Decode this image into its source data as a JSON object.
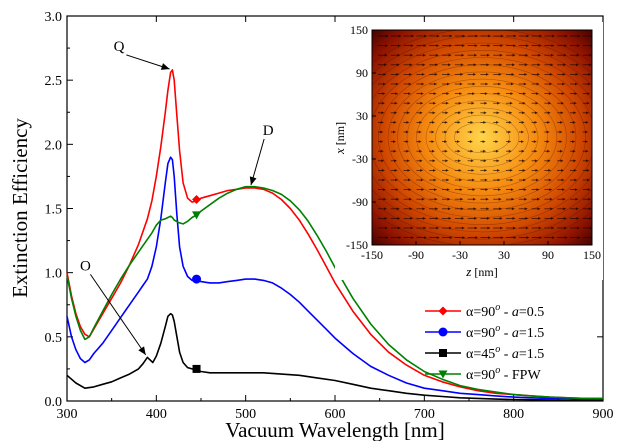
{
  "chart_data": [
    {
      "type": "line",
      "xlabel": "Vacuum Wavelength [nm]",
      "ylabel": "Extinction Efficiency",
      "xlim": [
        300,
        900
      ],
      "ylim": [
        0.0,
        3.0
      ],
      "xticks": [
        "300",
        "400",
        "500",
        "600",
        "700",
        "800",
        "900"
      ],
      "yticks": [
        "0.0",
        "0.5",
        "1.0",
        "1.5",
        "2.0",
        "2.5",
        "3.0"
      ],
      "grid": false,
      "legend_position": "bottom-right",
      "series": [
        {
          "name": "α=90o - a=0.5",
          "legend": {
            "pre": "α=90",
            "sup": "o",
            "mid": " - ",
            "var": "a",
            "post": "=0.5"
          },
          "color": "#ff0000",
          "marker": "diamond",
          "marker_point": [
            445,
            1.57
          ],
          "x": [
            300,
            305,
            310,
            315,
            320,
            325,
            330,
            340,
            350,
            360,
            370,
            380,
            390,
            395,
            400,
            405,
            410,
            413,
            416,
            418,
            420,
            423,
            426,
            430,
            435,
            440,
            445,
            450,
            460,
            470,
            480,
            490,
            500,
            510,
            520,
            530,
            540,
            550,
            560,
            570,
            580,
            590,
            600,
            620,
            640,
            660,
            680,
            700,
            720,
            740,
            760,
            780,
            800,
            820,
            840,
            860,
            880,
            900
          ],
          "y": [
            1.0,
            0.82,
            0.68,
            0.58,
            0.52,
            0.5,
            0.56,
            0.68,
            0.8,
            0.92,
            1.06,
            1.22,
            1.42,
            1.56,
            1.75,
            1.98,
            2.25,
            2.42,
            2.56,
            2.58,
            2.5,
            2.22,
            1.95,
            1.7,
            1.58,
            1.55,
            1.56,
            1.58,
            1.6,
            1.62,
            1.64,
            1.65,
            1.66,
            1.66,
            1.65,
            1.62,
            1.57,
            1.5,
            1.41,
            1.3,
            1.18,
            1.05,
            0.92,
            0.7,
            0.52,
            0.38,
            0.28,
            0.2,
            0.15,
            0.11,
            0.08,
            0.06,
            0.05,
            0.04,
            0.03,
            0.025,
            0.02,
            0.02
          ]
        },
        {
          "name": "α=90o - a=1.5",
          "legend": {
            "pre": "α=90",
            "sup": "o",
            "mid": " - ",
            "var": "a",
            "post": "=1.5"
          },
          "color": "#0000ff",
          "marker": "circle",
          "marker_point": [
            445,
            0.95
          ],
          "x": [
            300,
            305,
            310,
            315,
            320,
            325,
            330,
            340,
            350,
            360,
            370,
            380,
            385,
            390,
            395,
            400,
            405,
            410,
            413,
            416,
            418,
            420,
            423,
            426,
            430,
            435,
            440,
            445,
            450,
            460,
            470,
            480,
            490,
            500,
            510,
            520,
            530,
            540,
            550,
            560,
            570,
            580,
            590,
            600,
            620,
            640,
            660,
            680,
            700,
            720,
            740,
            760,
            780,
            800,
            820,
            840,
            860,
            880,
            900
          ],
          "y": [
            0.66,
            0.5,
            0.4,
            0.33,
            0.3,
            0.32,
            0.37,
            0.45,
            0.55,
            0.65,
            0.75,
            0.85,
            0.9,
            0.95,
            1.05,
            1.2,
            1.42,
            1.7,
            1.85,
            1.9,
            1.88,
            1.75,
            1.45,
            1.2,
            1.05,
            0.97,
            0.94,
            0.94,
            0.93,
            0.92,
            0.92,
            0.93,
            0.94,
            0.95,
            0.95,
            0.94,
            0.92,
            0.88,
            0.83,
            0.77,
            0.7,
            0.63,
            0.56,
            0.49,
            0.37,
            0.27,
            0.2,
            0.14,
            0.1,
            0.08,
            0.06,
            0.05,
            0.04,
            0.03,
            0.025,
            0.02,
            0.02,
            0.015,
            0.015
          ]
        },
        {
          "name": "α=45o - a=1.5",
          "legend": {
            "pre": "α=45",
            "sup": "o",
            "mid": " - ",
            "var": "a",
            "post": "=1.5"
          },
          "color": "#000000",
          "marker": "square",
          "marker_point": [
            445,
            0.25
          ],
          "x": [
            300,
            310,
            320,
            330,
            340,
            350,
            360,
            370,
            380,
            385,
            388,
            390,
            393,
            396,
            400,
            405,
            410,
            413,
            416,
            418,
            420,
            423,
            426,
            430,
            435,
            440,
            445,
            450,
            460,
            480,
            500,
            520,
            540,
            560,
            580,
            600,
            620,
            640,
            660,
            680,
            700,
            720,
            740,
            760,
            780,
            800,
            820,
            840,
            860,
            880,
            900
          ],
          "y": [
            0.2,
            0.14,
            0.1,
            0.11,
            0.13,
            0.15,
            0.18,
            0.21,
            0.25,
            0.29,
            0.32,
            0.34,
            0.32,
            0.3,
            0.35,
            0.45,
            0.58,
            0.66,
            0.68,
            0.67,
            0.62,
            0.5,
            0.38,
            0.3,
            0.26,
            0.25,
            0.24,
            0.23,
            0.22,
            0.22,
            0.22,
            0.22,
            0.21,
            0.2,
            0.18,
            0.16,
            0.13,
            0.1,
            0.08,
            0.06,
            0.045,
            0.035,
            0.025,
            0.02,
            0.015,
            0.012,
            0.01,
            0.008,
            0.006,
            0.005,
            0.004
          ]
        },
        {
          "name": "α=90o - FPW",
          "legend": {
            "pre": "α=90",
            "sup": "o",
            "mid": " - FPW",
            "var": "",
            "post": ""
          },
          "color": "#008000",
          "marker": "triangle-down",
          "marker_point": [
            445,
            1.45
          ],
          "x": [
            300,
            305,
            310,
            315,
            320,
            325,
            330,
            340,
            350,
            360,
            370,
            380,
            390,
            395,
            400,
            405,
            410,
            413,
            416,
            418,
            420,
            425,
            430,
            435,
            440,
            445,
            450,
            460,
            470,
            480,
            490,
            500,
            510,
            520,
            530,
            540,
            550,
            560,
            570,
            580,
            590,
            600,
            620,
            640,
            660,
            680,
            700,
            720,
            740,
            760,
            780,
            800,
            820,
            840,
            860,
            880,
            900
          ],
          "y": [
            0.98,
            0.8,
            0.66,
            0.55,
            0.48,
            0.5,
            0.57,
            0.7,
            0.83,
            0.95,
            1.06,
            1.16,
            1.26,
            1.31,
            1.37,
            1.41,
            1.42,
            1.43,
            1.44,
            1.43,
            1.41,
            1.39,
            1.38,
            1.4,
            1.43,
            1.45,
            1.48,
            1.53,
            1.58,
            1.62,
            1.65,
            1.67,
            1.67,
            1.66,
            1.64,
            1.61,
            1.56,
            1.49,
            1.4,
            1.29,
            1.17,
            1.04,
            0.8,
            0.6,
            0.44,
            0.32,
            0.23,
            0.17,
            0.12,
            0.09,
            0.07,
            0.05,
            0.04,
            0.03,
            0.025,
            0.02,
            0.02
          ]
        }
      ],
      "annotations": [
        {
          "label": "Q",
          "target": [
            418,
            2.58
          ]
        },
        {
          "label": "D",
          "target": [
            505,
            1.66
          ]
        },
        {
          "label": "O",
          "target": [
            390,
            0.34
          ]
        }
      ]
    },
    {
      "type": "heatmap",
      "xlabel_var": "z",
      "xlabel_unit": " [nm]",
      "ylabel_var": "x",
      "ylabel_unit": " [nm]",
      "xlim": [
        -150,
        150
      ],
      "ylim": [
        -150,
        150
      ],
      "xticks": [
        "-150",
        "-90",
        "-30",
        "30",
        "90",
        "150"
      ],
      "yticks": [
        "150",
        "90",
        "30",
        "-30",
        "-90",
        "-150"
      ],
      "colormap": [
        "#3a0000",
        "#8c1200",
        "#d04800",
        "#f58a10",
        "#ffd54a"
      ],
      "vector_overlay": true
    }
  ]
}
